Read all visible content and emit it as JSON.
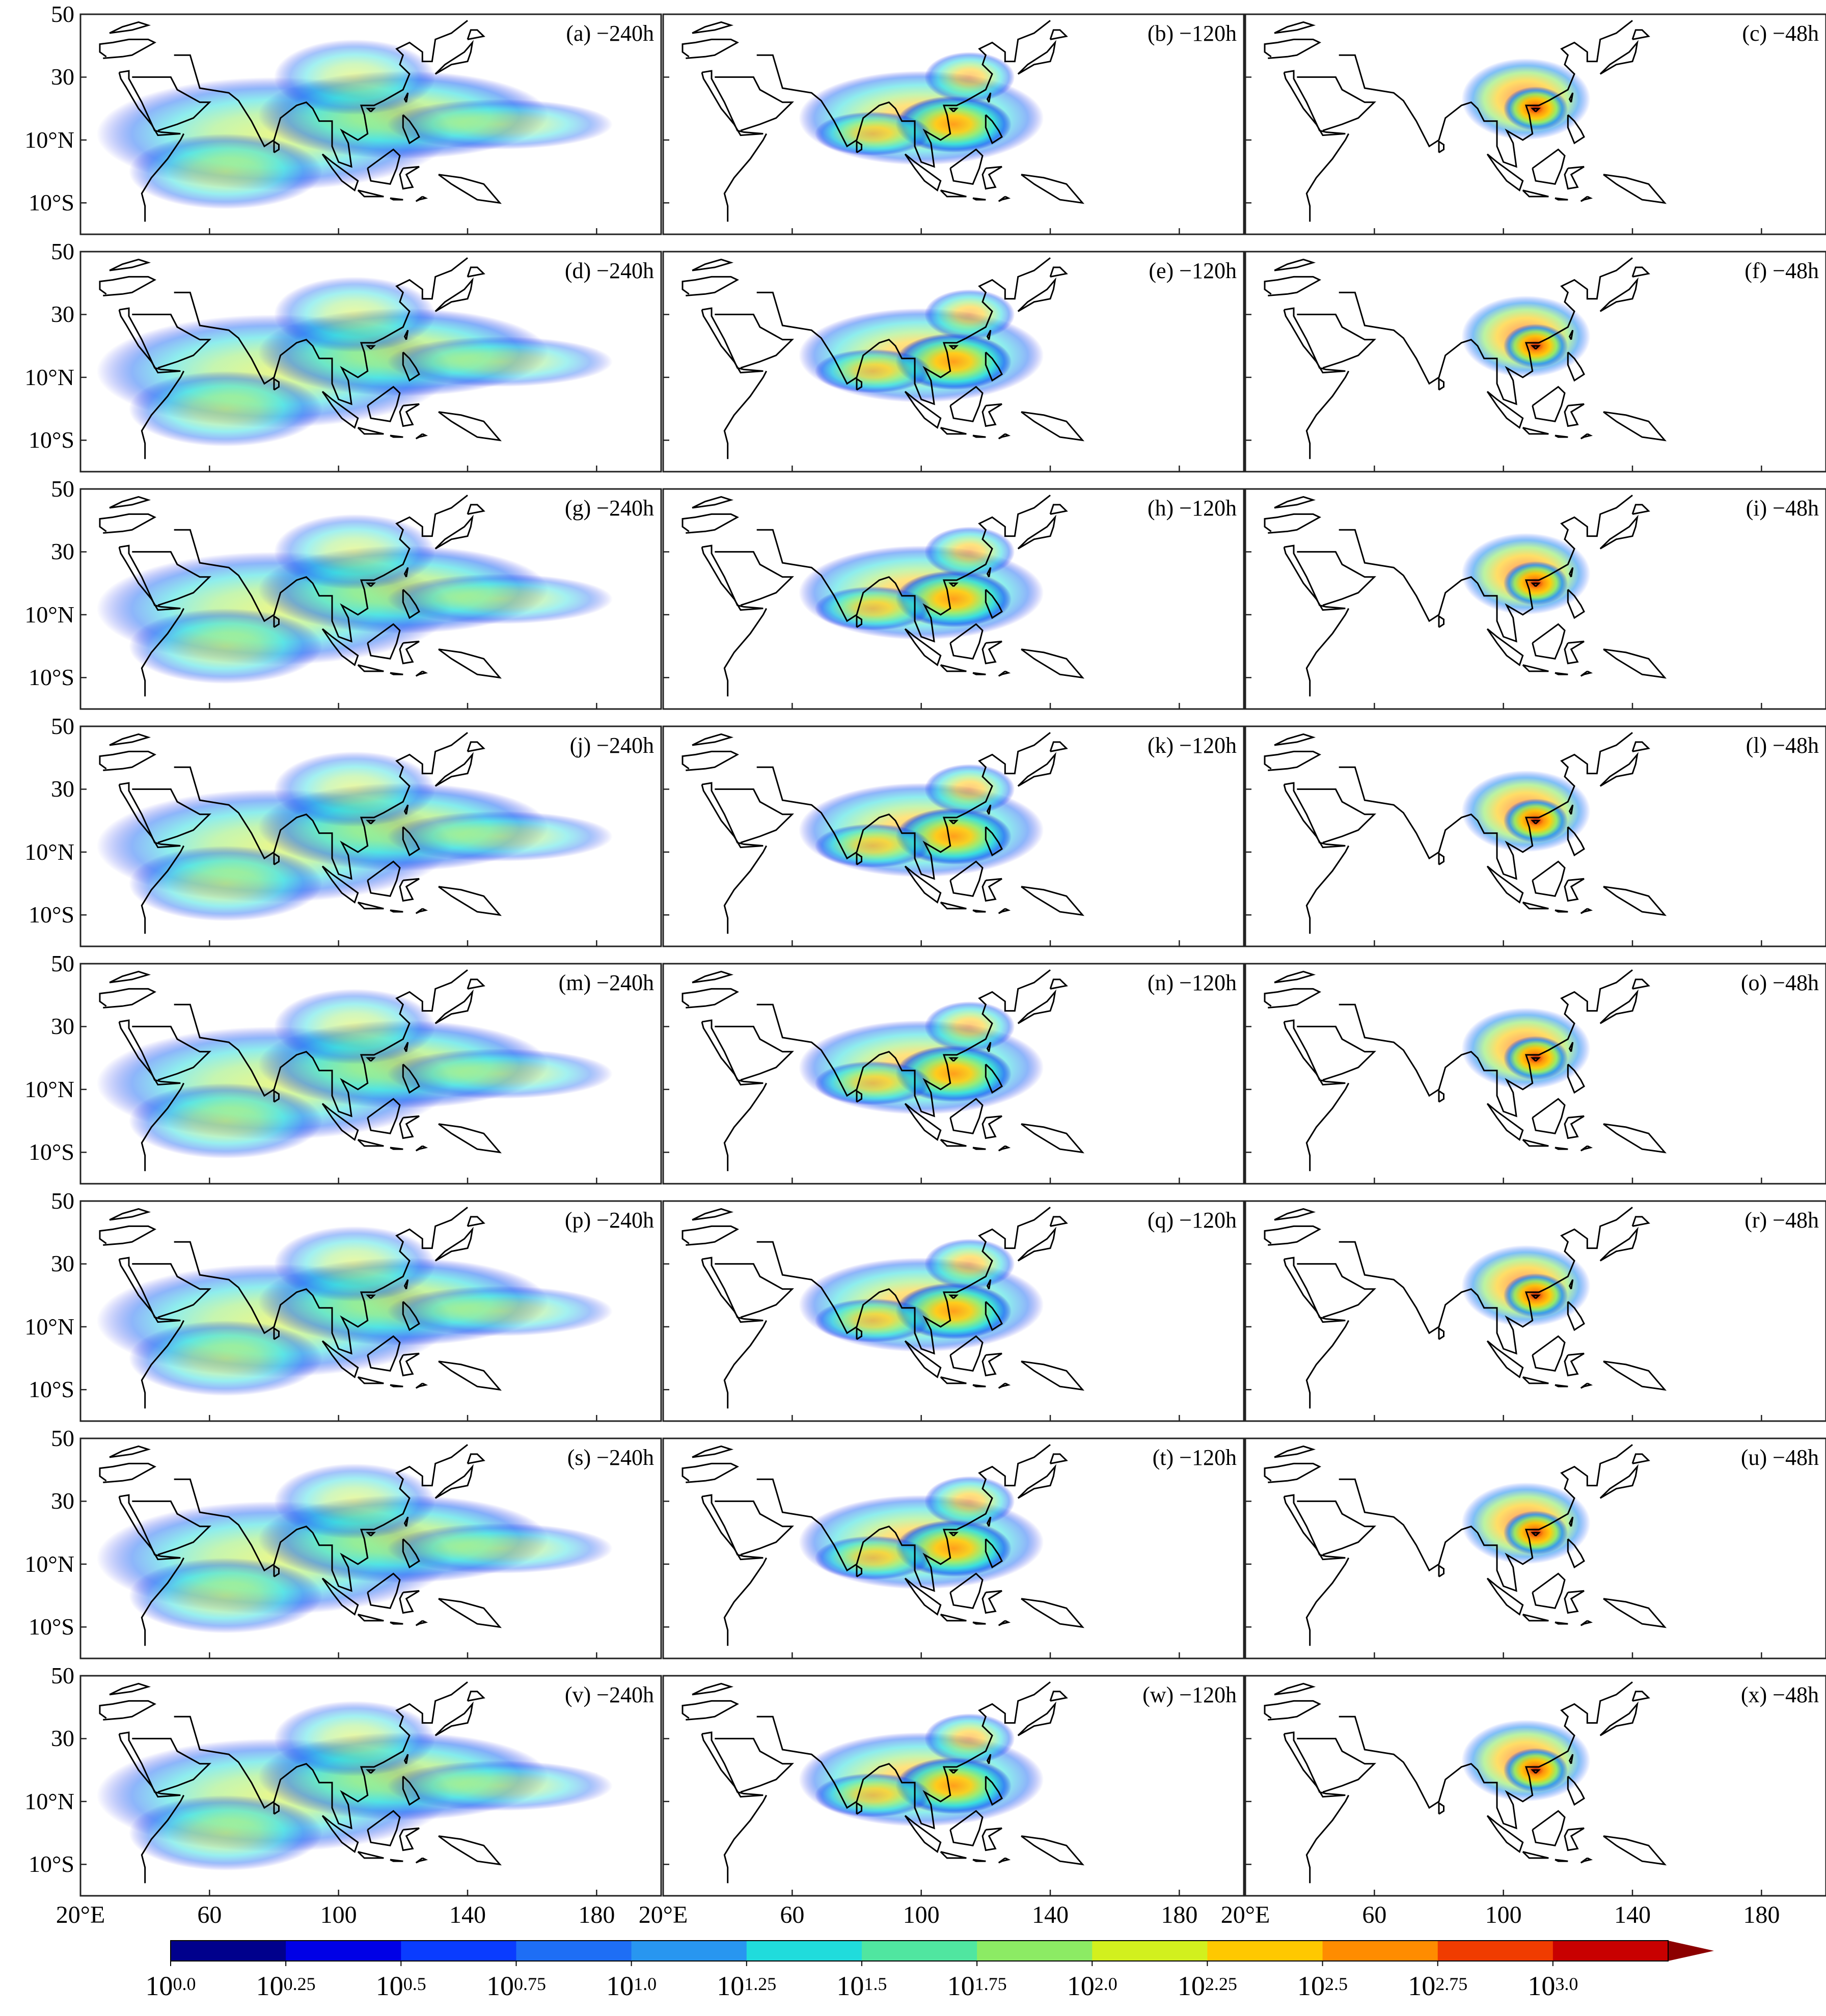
{
  "map": {
    "lon_range": [
      20,
      200
    ],
    "lat_range": [
      -20,
      50
    ],
    "y_ticks": [
      {
        "lat": 50,
        "label": "50"
      },
      {
        "lat": 30,
        "label": "30"
      },
      {
        "lat": 10,
        "label": "10°N"
      },
      {
        "lat": -10,
        "label": "10°S"
      }
    ],
    "x_ticks": [
      {
        "lon": 20,
        "label": "20°E"
      },
      {
        "lon": 60,
        "label": "60"
      },
      {
        "lon": 100,
        "label": "100"
      },
      {
        "lon": 140,
        "label": "140"
      },
      {
        "lon": 180,
        "label": "180"
      }
    ]
  },
  "panels": [
    {
      "label": "(a) −240h",
      "lead": "240h"
    },
    {
      "label": "(b) −120h",
      "lead": "120h"
    },
    {
      "label": "(c) −48h",
      "lead": "48h"
    },
    {
      "label": "(d) −240h",
      "lead": "240h"
    },
    {
      "label": "(e) −120h",
      "lead": "120h"
    },
    {
      "label": "(f) −48h",
      "lead": "48h"
    },
    {
      "label": "(g) −240h",
      "lead": "240h"
    },
    {
      "label": "(h) −120h",
      "lead": "120h"
    },
    {
      "label": "(i) −48h",
      "lead": "48h"
    },
    {
      "label": "(j) −240h",
      "lead": "240h"
    },
    {
      "label": "(k) −120h",
      "lead": "120h"
    },
    {
      "label": "(l) −48h",
      "lead": "48h"
    },
    {
      "label": "(m) −240h",
      "lead": "240h"
    },
    {
      "label": "(n) −120h",
      "lead": "120h"
    },
    {
      "label": "(o) −48h",
      "lead": "48h"
    },
    {
      "label": "(p) −240h",
      "lead": "240h"
    },
    {
      "label": "(q) −120h",
      "lead": "120h"
    },
    {
      "label": "(r) −48h",
      "lead": "48h"
    },
    {
      "label": "(s) −240h",
      "lead": "240h"
    },
    {
      "label": "(t) −120h",
      "lead": "120h"
    },
    {
      "label": "(u) −48h",
      "lead": "48h"
    },
    {
      "label": "(v) −240h",
      "lead": "240h"
    },
    {
      "label": "(w) −120h",
      "lead": "120h"
    },
    {
      "label": "(x) −48h",
      "lead": "48h"
    }
  ],
  "colorbar": {
    "colors": [
      "#00008c",
      "#0000e6",
      "#0a3cff",
      "#1e6ef5",
      "#2896f0",
      "#20dcdc",
      "#50e6a0",
      "#8ceb64",
      "#d2f01e",
      "#ffc800",
      "#ff8c00",
      "#f03c00",
      "#c80000",
      "#8c0000"
    ],
    "labels": [
      {
        "base": "10",
        "exp": "0.0"
      },
      {
        "base": "10",
        "exp": "0.25"
      },
      {
        "base": "10",
        "exp": "0.5"
      },
      {
        "base": "10",
        "exp": "0.75"
      },
      {
        "base": "10",
        "exp": "1.0"
      },
      {
        "base": "10",
        "exp": "1.25"
      },
      {
        "base": "10",
        "exp": "1.5"
      },
      {
        "base": "10",
        "exp": "1.75"
      },
      {
        "base": "10",
        "exp": "2.0"
      },
      {
        "base": "10",
        "exp": "2.25"
      },
      {
        "base": "10",
        "exp": "2.5"
      },
      {
        "base": "10",
        "exp": "2.75"
      },
      {
        "base": "10",
        "exp": "3.0"
      }
    ]
  }
}
